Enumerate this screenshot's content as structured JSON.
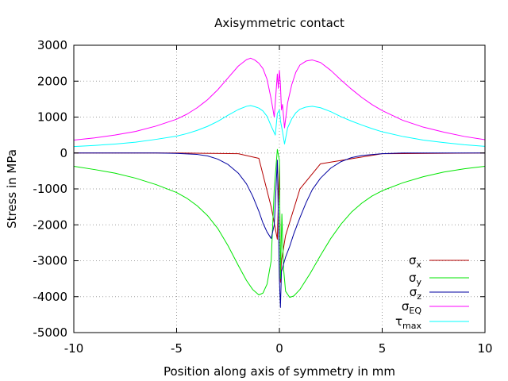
{
  "chart_data": {
    "type": "line",
    "title": "Axisymmetric contact",
    "xlabel": "Position along axis of symmetry in mm",
    "ylabel": "Stress in MPa",
    "xlim": [
      -10,
      10
    ],
    "ylim": [
      -5000,
      3000
    ],
    "xticks": [
      -10,
      -5,
      0,
      5,
      10
    ],
    "yticks": [
      -5000,
      -4000,
      -3000,
      -2000,
      -1000,
      0,
      1000,
      2000,
      3000
    ],
    "grid": true,
    "legend_position": "bottom-right",
    "series": [
      {
        "name": "σx",
        "legend": {
          "base": "σ",
          "sub": "x"
        },
        "color": "#b40000",
        "points": [
          [
            -10,
            0
          ],
          [
            -5,
            0
          ],
          [
            -2,
            -20
          ],
          [
            -1,
            -150
          ],
          [
            -0.4,
            -1500
          ],
          [
            -0.1,
            -2400
          ],
          [
            0,
            -300
          ],
          [
            0.05,
            -3600
          ],
          [
            0.1,
            -3000
          ],
          [
            0.3,
            -2300
          ],
          [
            1,
            -1000
          ],
          [
            2,
            -300
          ],
          [
            5,
            -20
          ],
          [
            10,
            0
          ]
        ]
      },
      {
        "name": "σy",
        "legend": {
          "base": "σ",
          "sub": "y"
        },
        "color": "#00e600",
        "points": [
          [
            -10,
            -370
          ],
          [
            -9,
            -460
          ],
          [
            -8,
            -560
          ],
          [
            -7,
            -700
          ],
          [
            -6,
            -880
          ],
          [
            -5,
            -1100
          ],
          [
            -4.5,
            -1260
          ],
          [
            -4,
            -1470
          ],
          [
            -3.5,
            -1740
          ],
          [
            -3,
            -2100
          ],
          [
            -2.5,
            -2580
          ],
          [
            -2,
            -3130
          ],
          [
            -1.6,
            -3550
          ],
          [
            -1.3,
            -3800
          ],
          [
            -1.0,
            -3950
          ],
          [
            -0.8,
            -3900
          ],
          [
            -0.6,
            -3650
          ],
          [
            -0.4,
            -3000
          ],
          [
            -0.25,
            -1000
          ],
          [
            -0.1,
            100
          ],
          [
            0,
            -200
          ],
          [
            0.05,
            -3500
          ],
          [
            0.12,
            -1700
          ],
          [
            0.2,
            -3200
          ],
          [
            0.3,
            -3850
          ],
          [
            0.5,
            -4020
          ],
          [
            0.7,
            -3980
          ],
          [
            1.0,
            -3800
          ],
          [
            1.5,
            -3350
          ],
          [
            2,
            -2850
          ],
          [
            2.5,
            -2380
          ],
          [
            3,
            -1980
          ],
          [
            3.5,
            -1650
          ],
          [
            4,
            -1400
          ],
          [
            4.5,
            -1200
          ],
          [
            5,
            -1050
          ],
          [
            6,
            -830
          ],
          [
            7,
            -660
          ],
          [
            8,
            -530
          ],
          [
            9,
            -440
          ],
          [
            10,
            -370
          ]
        ]
      },
      {
        "name": "σz",
        "legend": {
          "base": "σ",
          "sub": "z"
        },
        "color": "#0000a0",
        "points": [
          [
            -10,
            0
          ],
          [
            -8,
            0
          ],
          [
            -6,
            0
          ],
          [
            -5,
            -10
          ],
          [
            -4,
            -40
          ],
          [
            -3.5,
            -80
          ],
          [
            -3,
            -170
          ],
          [
            -2.5,
            -320
          ],
          [
            -2,
            -560
          ],
          [
            -1.6,
            -860
          ],
          [
            -1.3,
            -1200
          ],
          [
            -1.0,
            -1620
          ],
          [
            -0.8,
            -1950
          ],
          [
            -0.6,
            -2200
          ],
          [
            -0.4,
            -2380
          ],
          [
            -0.25,
            -2000
          ],
          [
            -0.1,
            -200
          ],
          [
            0,
            -3500
          ],
          [
            0.05,
            -4300
          ],
          [
            0.1,
            -3300
          ],
          [
            0.2,
            -3100
          ],
          [
            0.3,
            -2900
          ],
          [
            0.5,
            -2600
          ],
          [
            0.7,
            -2250
          ],
          [
            1.0,
            -1800
          ],
          [
            1.3,
            -1380
          ],
          [
            1.6,
            -1020
          ],
          [
            2,
            -700
          ],
          [
            2.5,
            -420
          ],
          [
            3,
            -240
          ],
          [
            3.5,
            -130
          ],
          [
            4,
            -70
          ],
          [
            5,
            -20
          ],
          [
            6,
            0
          ],
          [
            8,
            0
          ],
          [
            10,
            0
          ]
        ]
      },
      {
        "name": "σEQ",
        "legend": {
          "base": "σ",
          "sub": "EQ"
        },
        "color": "#ff00ff",
        "points": [
          [
            -10,
            360
          ],
          [
            -9,
            420
          ],
          [
            -8,
            500
          ],
          [
            -7,
            600
          ],
          [
            -6,
            750
          ],
          [
            -5,
            940
          ],
          [
            -4.5,
            1080
          ],
          [
            -4,
            1260
          ],
          [
            -3.5,
            1480
          ],
          [
            -3,
            1760
          ],
          [
            -2.5,
            2090
          ],
          [
            -2,
            2420
          ],
          [
            -1.6,
            2600
          ],
          [
            -1.4,
            2640
          ],
          [
            -1.2,
            2590
          ],
          [
            -1.0,
            2500
          ],
          [
            -0.8,
            2350
          ],
          [
            -0.6,
            2050
          ],
          [
            -0.4,
            1500
          ],
          [
            -0.25,
            1000
          ],
          [
            -0.1,
            2200
          ],
          [
            -0.05,
            1800
          ],
          [
            0,
            2300
          ],
          [
            0.05,
            1900
          ],
          [
            0.1,
            1200
          ],
          [
            0.15,
            1350
          ],
          [
            0.25,
            700
          ],
          [
            0.4,
            1400
          ],
          [
            0.6,
            1900
          ],
          [
            0.8,
            2250
          ],
          [
            1.0,
            2450
          ],
          [
            1.3,
            2560
          ],
          [
            1.6,
            2590
          ],
          [
            2,
            2520
          ],
          [
            2.5,
            2300
          ],
          [
            3,
            2030
          ],
          [
            3.5,
            1780
          ],
          [
            4,
            1550
          ],
          [
            4.5,
            1350
          ],
          [
            5,
            1180
          ],
          [
            6,
            910
          ],
          [
            7,
            720
          ],
          [
            8,
            580
          ],
          [
            9,
            460
          ],
          [
            10,
            370
          ]
        ]
      },
      {
        "name": "τmax",
        "legend": {
          "base": "τ",
          "sub": "max"
        },
        "color": "#00ffff",
        "points": [
          [
            -10,
            180
          ],
          [
            -9,
            210
          ],
          [
            -8,
            250
          ],
          [
            -7,
            300
          ],
          [
            -6,
            380
          ],
          [
            -5,
            470
          ],
          [
            -4.5,
            540
          ],
          [
            -4,
            630
          ],
          [
            -3.5,
            740
          ],
          [
            -3,
            880
          ],
          [
            -2.5,
            1050
          ],
          [
            -2,
            1210
          ],
          [
            -1.6,
            1300
          ],
          [
            -1.4,
            1320
          ],
          [
            -1.2,
            1290
          ],
          [
            -1.0,
            1250
          ],
          [
            -0.8,
            1170
          ],
          [
            -0.6,
            1020
          ],
          [
            -0.4,
            750
          ],
          [
            -0.2,
            500
          ],
          [
            -0.1,
            1100
          ],
          [
            0,
            1200
          ],
          [
            0.05,
            900
          ],
          [
            0.15,
            600
          ],
          [
            0.25,
            250
          ],
          [
            0.4,
            700
          ],
          [
            0.6,
            950
          ],
          [
            0.8,
            1120
          ],
          [
            1.0,
            1220
          ],
          [
            1.3,
            1280
          ],
          [
            1.6,
            1300
          ],
          [
            2,
            1260
          ],
          [
            2.5,
            1150
          ],
          [
            3,
            1010
          ],
          [
            3.5,
            890
          ],
          [
            4,
            780
          ],
          [
            4.5,
            680
          ],
          [
            5,
            590
          ],
          [
            6,
            460
          ],
          [
            7,
            360
          ],
          [
            8,
            290
          ],
          [
            9,
            230
          ],
          [
            10,
            185
          ]
        ]
      }
    ]
  }
}
